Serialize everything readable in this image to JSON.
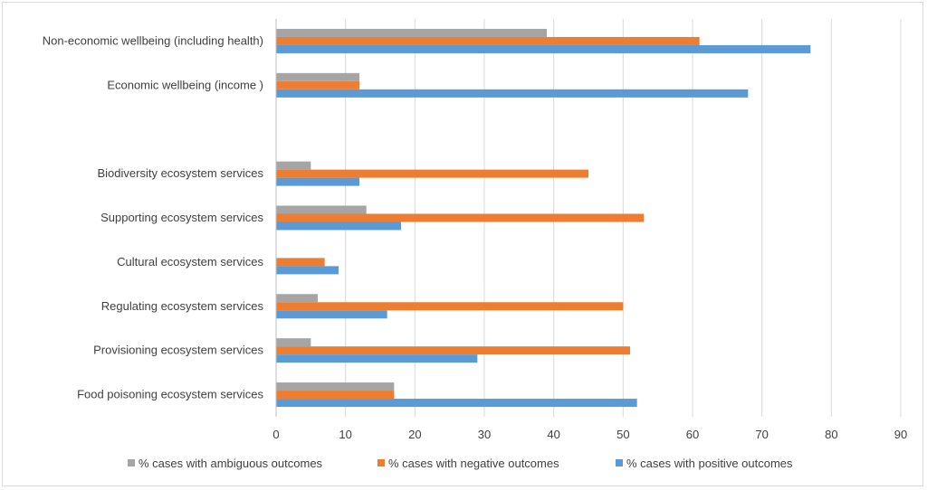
{
  "chart_data": {
    "type": "bar",
    "orientation": "horizontal",
    "categories": [
      "Non-economic wellbeing (including health)",
      "Economic wellbeing (income )",
      "",
      "Biodiversity ecosystem services",
      "Supporting ecosystem services",
      "Cultural ecosystem services",
      "Regulating ecosystem services",
      "Provisioning ecosystem services",
      "Food poisoning ecosystem services"
    ],
    "series": [
      {
        "name": "% cases with ambiguous outcomes",
        "color": "#a5a5a5",
        "values": [
          39,
          12,
          null,
          5,
          13,
          0,
          6,
          5,
          17
        ]
      },
      {
        "name": "% cases with negative outcomes",
        "color": "#ed7d31",
        "values": [
          61,
          12,
          null,
          45,
          53,
          7,
          50,
          51,
          17
        ]
      },
      {
        "name": "% cases with positive outcomes",
        "color": "#5b9bd5",
        "values": [
          77,
          68,
          null,
          12,
          18,
          9,
          16,
          29,
          52
        ]
      }
    ],
    "xlim": [
      0,
      90
    ],
    "xticks": [
      0,
      10,
      20,
      30,
      40,
      50,
      60,
      70,
      80,
      90
    ],
    "grid": true,
    "legend_position": "bottom",
    "title": "",
    "xlabel": "",
    "ylabel": ""
  }
}
